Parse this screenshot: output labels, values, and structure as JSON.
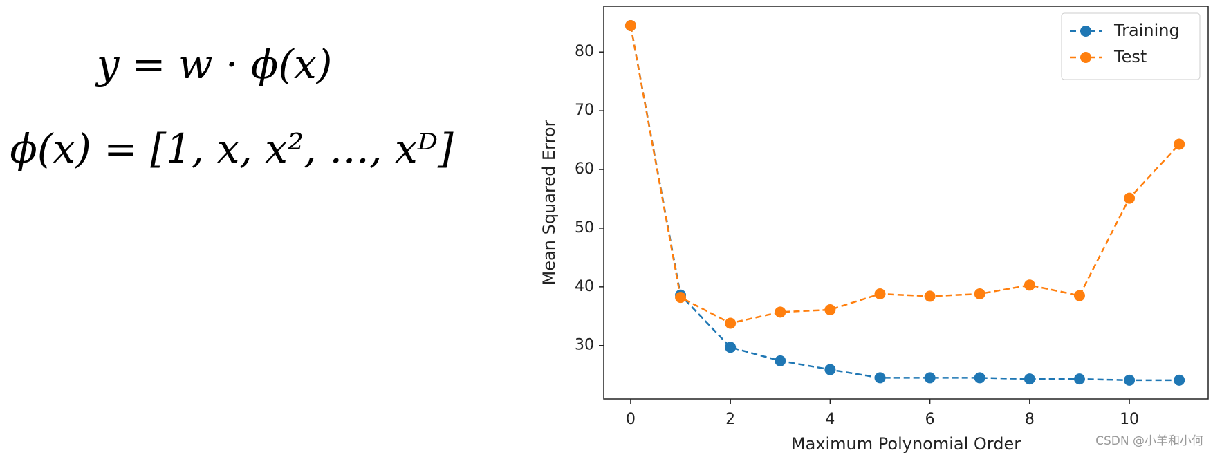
{
  "formulas": [
    "y = w · ϕ(x)",
    "ϕ(x) = [1, x, x², …, xᴰ]"
  ],
  "watermark": "CSDN @小羊和小何",
  "chart_data": {
    "type": "line",
    "xlabel": "Maximum Polynomial Order",
    "ylabel": "Mean Squared Error",
    "x": [
      0,
      1,
      2,
      3,
      4,
      5,
      6,
      7,
      8,
      9,
      10,
      11
    ],
    "series": [
      {
        "name": "Training",
        "color": "#1f77b4",
        "values": [
          84.5,
          38.6,
          29.7,
          27.4,
          25.9,
          24.5,
          24.5,
          24.5,
          24.3,
          24.3,
          24.1,
          24.1
        ]
      },
      {
        "name": "Test",
        "color": "#ff7f0e",
        "values": [
          84.5,
          38.2,
          33.8,
          35.7,
          36.1,
          38.8,
          38.4,
          38.8,
          40.3,
          38.5,
          55.1,
          64.3
        ]
      }
    ],
    "xlim": [
      -0.54,
      11.58
    ],
    "xticks": [
      0,
      2,
      4,
      6,
      8,
      10
    ],
    "ylim": [
      20.9,
      87.8
    ],
    "yticks": [
      30,
      40,
      50,
      60,
      70,
      80
    ],
    "legend": "upper right"
  }
}
